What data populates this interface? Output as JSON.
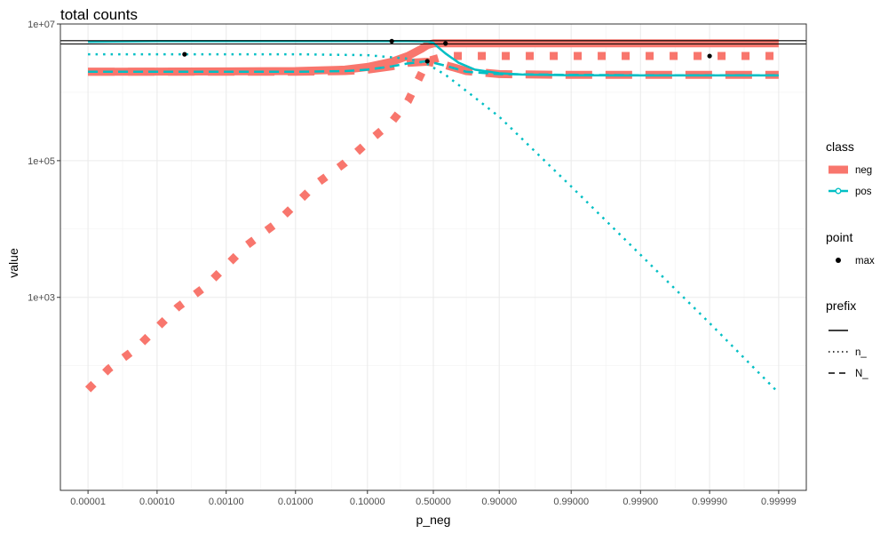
{
  "chart_data": {
    "type": "line",
    "title": "total counts",
    "xlabel": "p_neg",
    "ylabel": "value",
    "x_scale": "logit",
    "y_scale": "log10",
    "ylim": [
      1.5,
      10000000.0
    ],
    "x_ticks": [
      {
        "value": 1e-05,
        "label": "0.00001"
      },
      {
        "value": 0.0001,
        "label": "0.00010"
      },
      {
        "value": 0.001,
        "label": "0.00100"
      },
      {
        "value": 0.01,
        "label": "0.01000"
      },
      {
        "value": 0.1,
        "label": "0.10000"
      },
      {
        "value": 0.5,
        "label": "0.50000"
      },
      {
        "value": 0.9,
        "label": "0.90000"
      },
      {
        "value": 0.99,
        "label": "0.99000"
      },
      {
        "value": 0.999,
        "label": "0.99900"
      },
      {
        "value": 0.9999,
        "label": "0.99990"
      },
      {
        "value": 0.99999,
        "label": "0.99999"
      }
    ],
    "y_ticks": [
      {
        "value": 1000,
        "label": "1e+03"
      },
      {
        "value": 100000,
        "label": "1e+05"
      },
      {
        "value": 10000000,
        "label": "1e+07"
      }
    ],
    "grid": true,
    "legend_position": "right",
    "series": [
      {
        "name": "neg",
        "class": "neg",
        "prefix": "",
        "color": "#F8766D",
        "style": "solid",
        "width": 9,
        "x": [
          1e-05,
          0.0001,
          0.001,
          0.01,
          0.05,
          0.1,
          0.2,
          0.3,
          0.4,
          0.45,
          0.5,
          0.6,
          0.9,
          0.99,
          0.9999,
          0.99999
        ],
        "y": [
          2000000,
          2010000,
          2020000,
          2050000,
          2150000,
          2350000,
          2800000,
          3400000,
          4300000,
          4900000,
          5200000,
          5200000,
          5200000,
          5200000,
          5200000,
          5200000
        ]
      },
      {
        "name": "n_neg",
        "class": "neg",
        "prefix": "n_",
        "color": "#F8766D",
        "style": "dotted",
        "width": 9,
        "x": [
          1e-05,
          2e-05,
          5e-05,
          0.0001,
          0.0002,
          0.0005,
          0.001,
          0.002,
          0.005,
          0.01,
          0.02,
          0.05,
          0.1,
          0.2,
          0.3,
          0.45,
          0.6,
          0.75,
          0.9,
          0.96,
          0.99,
          0.996,
          0.999,
          0.9996,
          0.9999,
          0.99996,
          0.99999
        ],
        "y": [
          45,
          90,
          180,
          360,
          720,
          1440,
          2900,
          5800,
          11600,
          23000,
          46000,
          93000,
          185000,
          370000,
          740000,
          2850000,
          3400000,
          3400000,
          3400000,
          3400000,
          3400000,
          3400000,
          3400000,
          3400000,
          3400000,
          3400000,
          3400000
        ]
      },
      {
        "name": "N_neg",
        "class": "neg",
        "prefix": "N_",
        "color": "#F8766D",
        "style": "dashed",
        "width": 9,
        "x": [
          1e-05,
          0.0001,
          0.001,
          0.01,
          0.05,
          0.1,
          0.2,
          0.3,
          0.45,
          0.6,
          0.75,
          0.9,
          0.99,
          0.999,
          0.9999,
          0.99999
        ],
        "y": [
          2000000,
          2000000,
          2000000,
          2000000,
          2050000,
          2150000,
          2400000,
          2700000,
          2800000,
          2500000,
          2050000,
          1850000,
          1800000,
          1800000,
          1800000,
          1800000
        ]
      },
      {
        "name": "pos",
        "class": "pos",
        "prefix": "",
        "color": "#00BFC4",
        "style": "solid",
        "width": 2.5,
        "x": [
          1e-05,
          0.0001,
          0.001,
          0.01,
          0.1,
          0.3,
          0.45,
          0.5,
          0.55,
          0.6,
          0.7,
          0.8,
          0.9,
          0.95,
          0.99,
          0.999,
          0.9999,
          0.99999
        ],
        "y": [
          5500000,
          5600000,
          5600000,
          5600000,
          5600000,
          5600000,
          5550000,
          5300000,
          4400000,
          3700000,
          2700000,
          2150000,
          1900000,
          1820000,
          1780000,
          1770000,
          1770000,
          1770000
        ]
      },
      {
        "name": "n_pos",
        "class": "pos",
        "prefix": "n_",
        "color": "#00BFC4",
        "style": "dotted",
        "width": 2.5,
        "x": [
          1e-05,
          0.0001,
          0.001,
          0.01,
          0.1,
          0.3,
          0.45,
          0.6,
          0.75,
          0.9,
          0.99,
          0.999,
          0.9999,
          0.99999
        ],
        "y": [
          3600000,
          3600000,
          3600000,
          3600000,
          3500000,
          3100000,
          2600000,
          1800000,
          1050000,
          440000,
          42000,
          4200,
          420,
          40
        ]
      },
      {
        "name": "N_pos",
        "class": "pos",
        "prefix": "N_",
        "color": "#00BFC4",
        "style": "dashed",
        "width": 2.5,
        "x": [
          1e-05,
          0.0001,
          0.001,
          0.01,
          0.05,
          0.1,
          0.2,
          0.3,
          0.45,
          0.6,
          0.75,
          0.9,
          0.99,
          0.999,
          0.9999,
          0.99999
        ],
        "y": [
          2000000,
          2000000,
          2000000,
          2000000,
          2050000,
          2150000,
          2400000,
          2650000,
          2850000,
          2450000,
          2000000,
          1850000,
          1800000,
          1780000,
          1780000,
          1780000
        ]
      }
    ],
    "hlines": [
      5100000,
      5700000
    ],
    "max_points": [
      {
        "x": 0.00025,
        "y": 3600000
      },
      {
        "x": 0.2,
        "y": 5600000
      },
      {
        "x": 0.45,
        "y": 2850000
      },
      {
        "x": 0.6,
        "y": 5200000
      },
      {
        "x": 0.9999,
        "y": 3400000
      }
    ],
    "legend": {
      "class": {
        "title": "class",
        "items": [
          {
            "label": "neg",
            "color": "#F8766D"
          },
          {
            "label": "pos",
            "color": "#00BFC4"
          }
        ]
      },
      "point": {
        "title": "point",
        "items": [
          {
            "label": "max"
          }
        ]
      },
      "prefix": {
        "title": "prefix",
        "items": [
          {
            "label": "",
            "style": "solid"
          },
          {
            "label": "n_",
            "style": "dotted"
          },
          {
            "label": "N_",
            "style": "dashed"
          }
        ]
      }
    }
  }
}
